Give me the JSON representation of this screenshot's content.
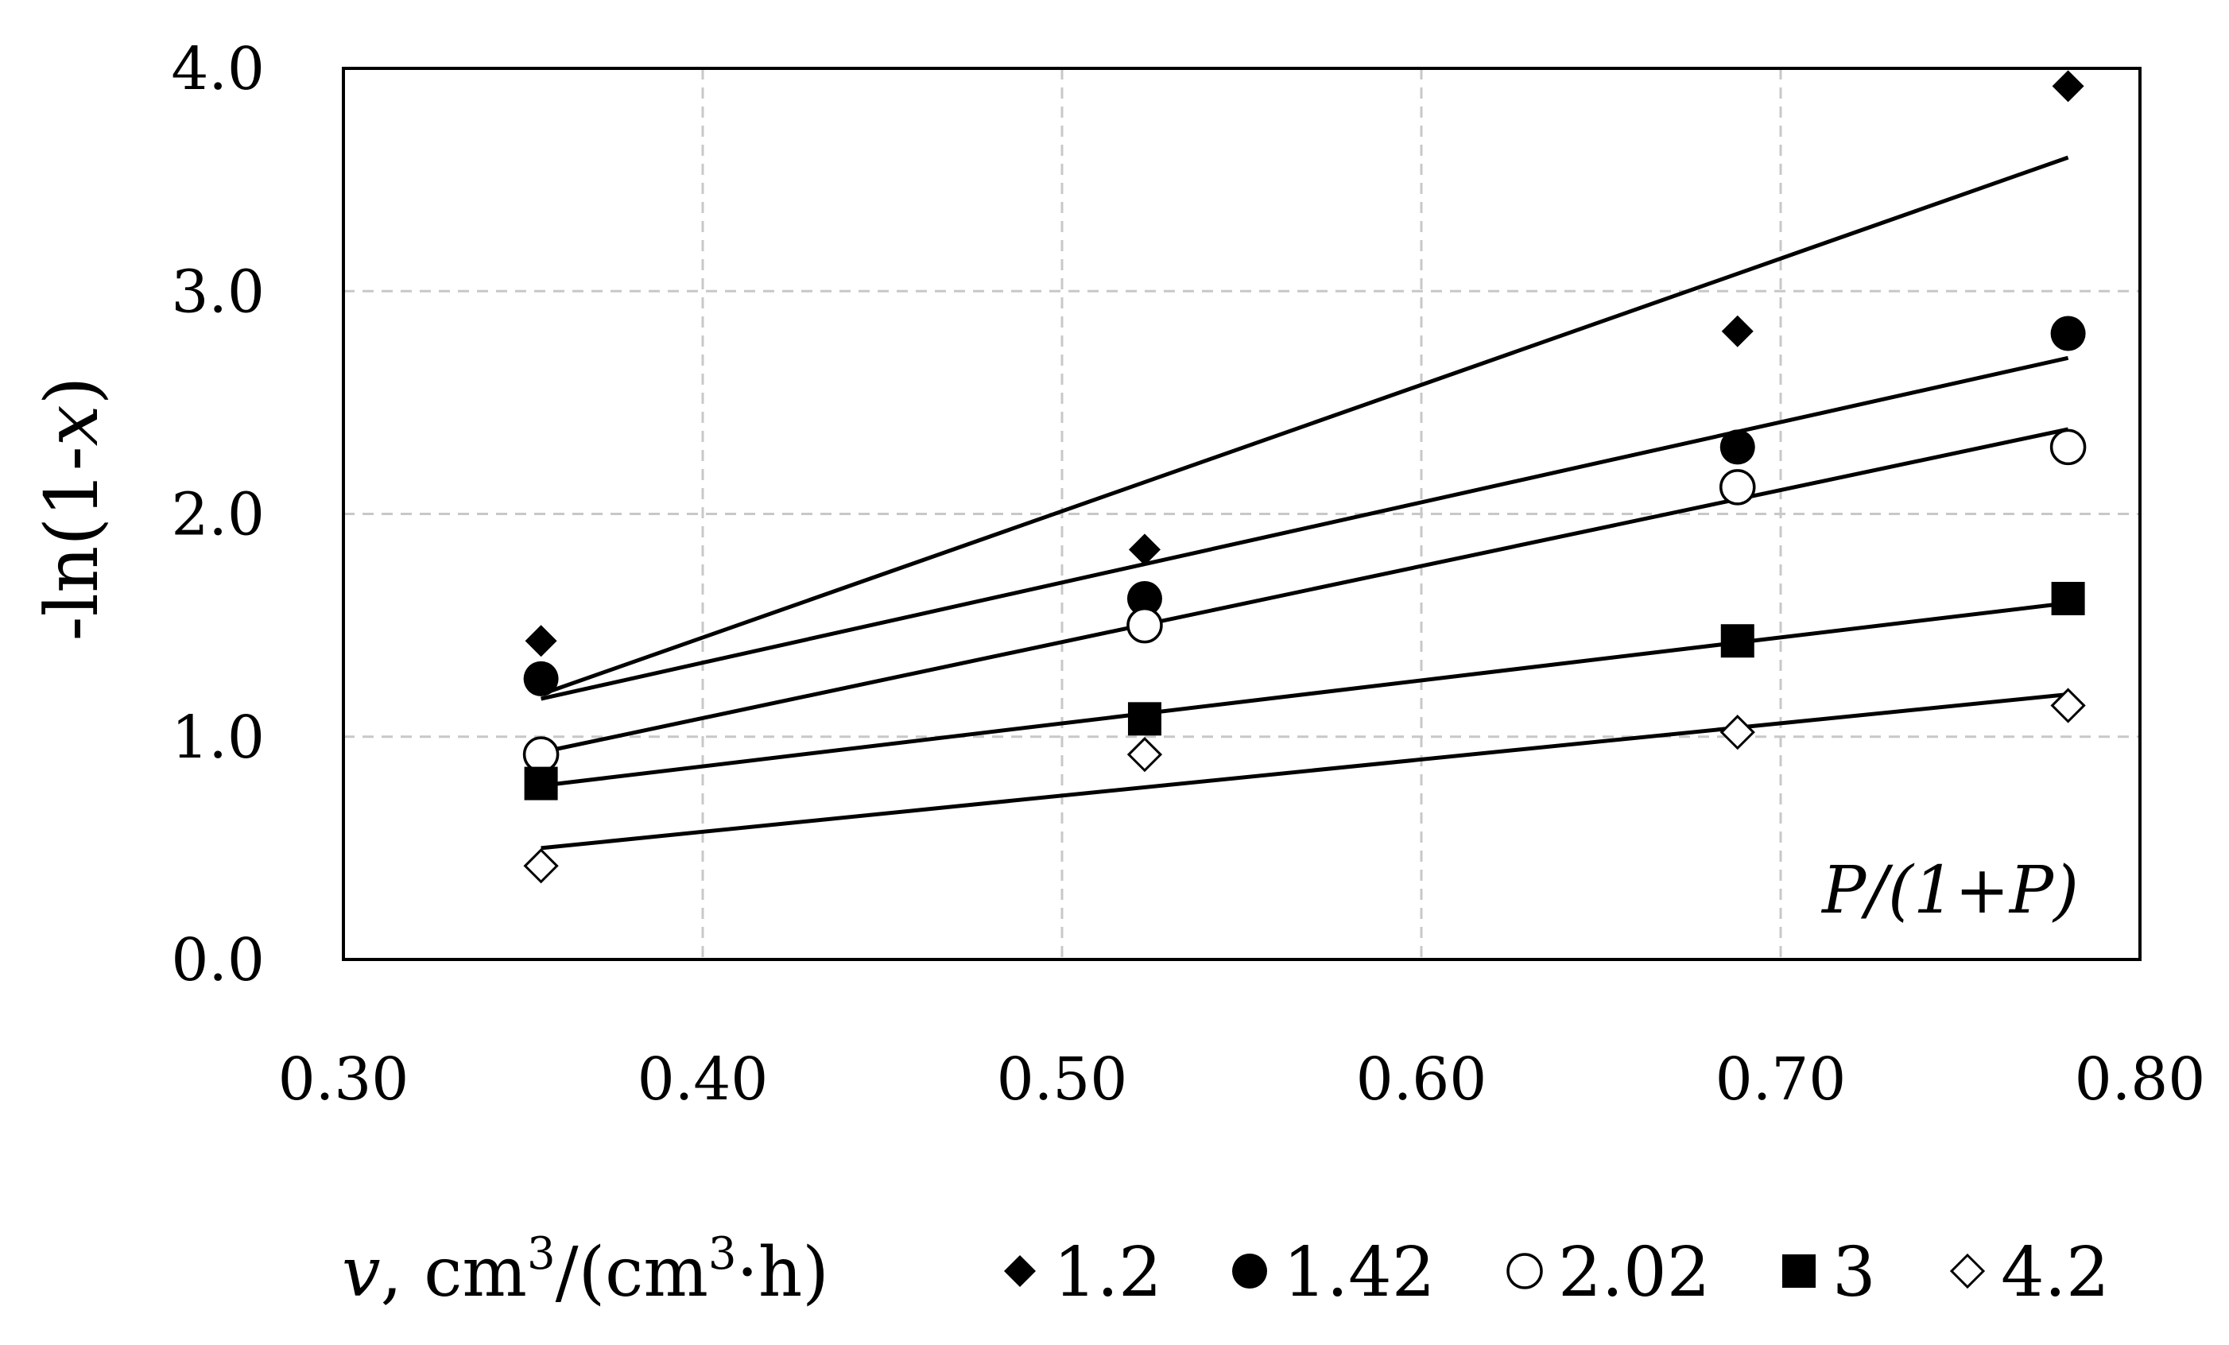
{
  "chart_data": {
    "type": "scatter",
    "title": "",
    "xlabel_italic": "v",
    "xlabel_rest": ", cm",
    "xlabel_sup1": "3",
    "xlabel_mid": "/(cm",
    "xlabel_sup2": "3",
    "xlabel_dot": "·",
    "xlabel_end": "h)",
    "ylabel_prefix": "-ln(1-",
    "ylabel_var": "x",
    "ylabel_suffix": ")",
    "xlim": [
      0.3,
      0.8
    ],
    "ylim": [
      0.0,
      4.0
    ],
    "xticks": [
      0.3,
      0.4,
      0.5,
      0.6,
      0.7,
      0.8
    ],
    "xtick_labels": [
      "0.30",
      "0.40",
      "0.50",
      "0.60",
      "0.70",
      "0.80"
    ],
    "yticks": [
      0.0,
      1.0,
      2.0,
      3.0,
      4.0
    ],
    "ytick_labels": [
      "0.0",
      "1.0",
      "2.0",
      "3.0",
      "4.0"
    ],
    "grid": true,
    "annotation": "P/(1+P)",
    "legend_position": "bottom",
    "series": [
      {
        "name": "1.2",
        "marker": "diamond-filled",
        "x": [
          0.355,
          0.523,
          0.688,
          0.78
        ],
        "y": [
          1.43,
          1.84,
          2.82,
          3.92
        ],
        "trend": [
          [
            0.355,
            1.19
          ],
          [
            0.78,
            3.6
          ]
        ]
      },
      {
        "name": "1.42",
        "marker": "circle-filled",
        "x": [
          0.355,
          0.523,
          0.688,
          0.78
        ],
        "y": [
          1.26,
          1.62,
          2.3,
          2.81
        ],
        "trend": [
          [
            0.355,
            1.17
          ],
          [
            0.78,
            2.7
          ]
        ]
      },
      {
        "name": "2.02",
        "marker": "circle-open",
        "x": [
          0.355,
          0.523,
          0.688,
          0.78
        ],
        "y": [
          0.92,
          1.5,
          2.12,
          2.3
        ],
        "trend": [
          [
            0.355,
            0.93
          ],
          [
            0.78,
            2.38
          ]
        ]
      },
      {
        "name": "3",
        "marker": "square-filled",
        "x": [
          0.355,
          0.523,
          0.688,
          0.78
        ],
        "y": [
          0.79,
          1.08,
          1.43,
          1.62
        ],
        "trend": [
          [
            0.355,
            0.78
          ],
          [
            0.78,
            1.6
          ]
        ]
      },
      {
        "name": "4.2",
        "marker": "diamond-open",
        "x": [
          0.355,
          0.523,
          0.688,
          0.78
        ],
        "y": [
          0.42,
          0.92,
          1.02,
          1.14
        ],
        "trend": [
          [
            0.355,
            0.5
          ],
          [
            0.78,
            1.19
          ]
        ]
      }
    ]
  }
}
